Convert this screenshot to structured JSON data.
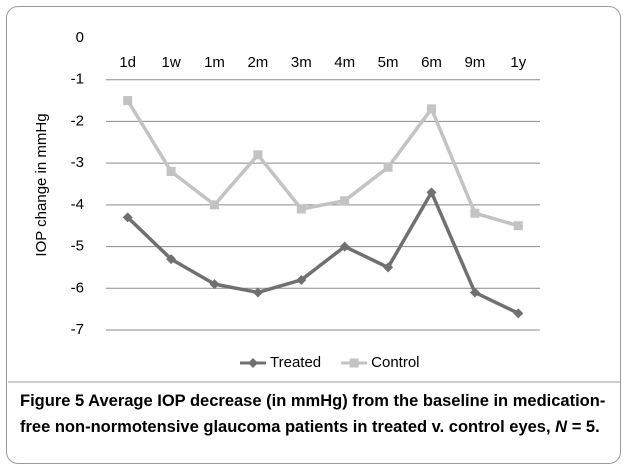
{
  "chart_data": {
    "type": "line",
    "y_label": "IOP change in mmHg",
    "categories": [
      "1d",
      "1w",
      "1m",
      "2m",
      "3m",
      "4m",
      "5m",
      "6m",
      "9m",
      "1y"
    ],
    "series": [
      {
        "name": "Treated",
        "color": "#707070",
        "marker": "diamond",
        "values": [
          -4.3,
          -5.3,
          -5.9,
          -6.1,
          -5.8,
          -5.0,
          -5.5,
          -3.7,
          -6.1,
          -6.6
        ]
      },
      {
        "name": "Control",
        "color": "#c3c3c3",
        "marker": "square",
        "values": [
          -1.5,
          -3.2,
          -4.0,
          -2.8,
          -4.1,
          -3.9,
          -3.1,
          -1.7,
          -4.2,
          -4.5
        ]
      }
    ],
    "ylim": [
      -7,
      0
    ],
    "yticks": [
      0,
      -1,
      -2,
      -3,
      -4,
      -5,
      -6,
      -7
    ],
    "grid": true,
    "legend": "bottom"
  },
  "caption": {
    "label": "Figure 5",
    "text": "Average IOP decrease (in mmHg) from the baseline in medication-free non-normotensive glaucoma patients in treated v. control eyes,",
    "n": "N",
    "tail": "= 5."
  }
}
